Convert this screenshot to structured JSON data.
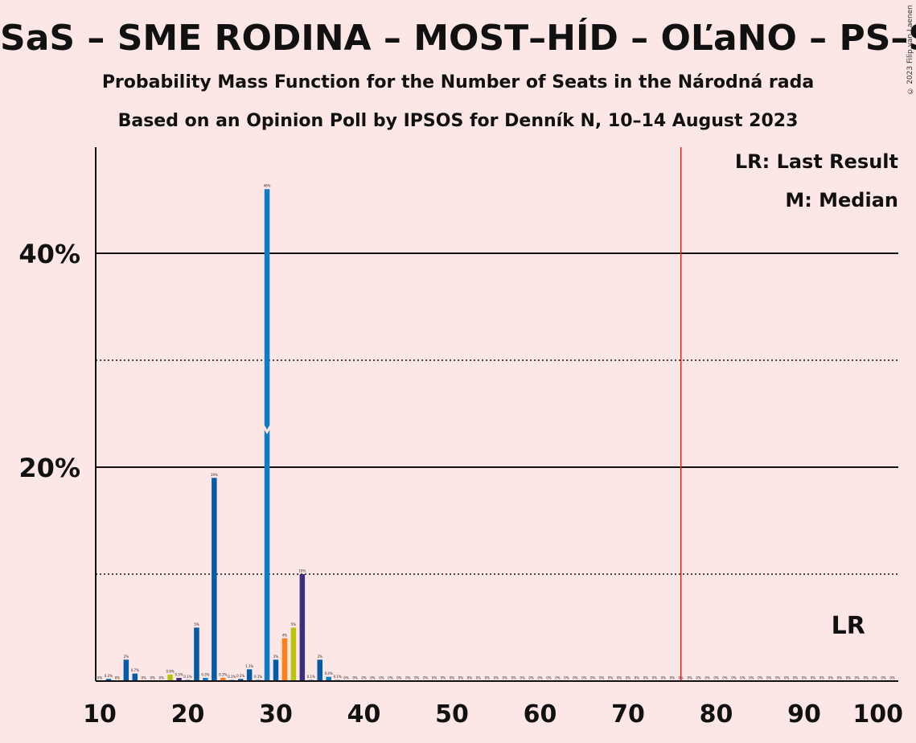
{
  "header": {
    "title": "SaS – SME RODINA – MOST–HÍD – OĽaNO – PS–SPOLU",
    "subtitle1": "Probability Mass Function for the Number of Seats in the Národná rada",
    "subtitle2": "Based on an Opinion Poll by IPSOS for Denník N, 10–14 August 2023",
    "copyright": "© 2023 Filip van Laenen"
  },
  "legend": {
    "last_result": "LR: Last Result",
    "median": "M: Median",
    "lr_marker": "LR"
  },
  "colors": {
    "background": "#fde6e6",
    "majority_line": "#e02020",
    "palette": [
      "#005ba8",
      "#0c7cc7",
      "#ff7f14",
      "#b8c40a",
      "#3a2f7c",
      "#5a3d8a"
    ]
  },
  "chart_data": {
    "type": "bar",
    "xlabel": "",
    "ylabel": "",
    "xlim": [
      10,
      100
    ],
    "ylim": [
      0,
      50
    ],
    "x_ticks": [
      10,
      20,
      30,
      40,
      50,
      60,
      70,
      80,
      90,
      100
    ],
    "y_ticks": [
      {
        "value": 20,
        "label": "20%"
      },
      {
        "value": 40,
        "label": "40%"
      }
    ],
    "y_gridlines_solid": [
      20,
      40
    ],
    "y_gridlines_dotted": [
      10,
      30
    ],
    "majority_line_x": 76,
    "median_x": 29,
    "last_result_x": 95,
    "bars": [
      {
        "x": 10,
        "value": 0,
        "label": "0%",
        "color": 0
      },
      {
        "x": 11,
        "value": 0.2,
        "label": "0.2%",
        "color": 0
      },
      {
        "x": 12,
        "value": 0,
        "label": "0%",
        "color": 0
      },
      {
        "x": 13,
        "value": 2,
        "label": "2%",
        "color": 0
      },
      {
        "x": 14,
        "value": 0.7,
        "label": "0.7%",
        "color": 0
      },
      {
        "x": 15,
        "value": 0,
        "label": "0%",
        "color": 0
      },
      {
        "x": 16,
        "value": 0,
        "label": "0%",
        "color": 0
      },
      {
        "x": 17,
        "value": 0,
        "label": "0%",
        "color": 0
      },
      {
        "x": 18,
        "value": 0.6,
        "label": "0.6%",
        "color": 3
      },
      {
        "x": 19,
        "value": 0.3,
        "label": "0.3%",
        "color": 4
      },
      {
        "x": 20,
        "value": 0.1,
        "label": "0.1%",
        "color": 0
      },
      {
        "x": 21,
        "value": 5,
        "label": "5%",
        "color": 0
      },
      {
        "x": 22,
        "value": 0.3,
        "label": "0.3%",
        "color": 1
      },
      {
        "x": 23,
        "value": 19,
        "label": "19%",
        "color": 0
      },
      {
        "x": 24,
        "value": 0.3,
        "label": "0.3%",
        "color": 2
      },
      {
        "x": 25,
        "value": 0.1,
        "label": "0.1%",
        "color": 0
      },
      {
        "x": 26,
        "value": 0.2,
        "label": "0.2%",
        "color": 0
      },
      {
        "x": 27,
        "value": 1.1,
        "label": "1.1%",
        "color": 0
      },
      {
        "x": 28,
        "value": 0.1,
        "label": "0.1%",
        "color": 0
      },
      {
        "x": 29,
        "value": 46,
        "label": "46%",
        "color": 1
      },
      {
        "x": 30,
        "value": 2,
        "label": "2%",
        "color": 0
      },
      {
        "x": 31,
        "value": 4,
        "label": "4%",
        "color": 2
      },
      {
        "x": 32,
        "value": 5,
        "label": "5%",
        "color": 3
      },
      {
        "x": 33,
        "value": 10,
        "label": "10%",
        "color": 4
      },
      {
        "x": 34,
        "value": 0.1,
        "label": "0.1%",
        "color": 0
      },
      {
        "x": 35,
        "value": 2,
        "label": "2%",
        "color": 0
      },
      {
        "x": 36,
        "value": 0.4,
        "label": "0.4%",
        "color": 1
      },
      {
        "x": 37,
        "value": 0.1,
        "label": "0.1%",
        "color": 0
      },
      {
        "x": 38,
        "value": 0,
        "label": "0%",
        "color": 0
      },
      {
        "x": 39,
        "value": 0,
        "label": "0%",
        "color": 0
      },
      {
        "x": 40,
        "value": 0,
        "label": "0%",
        "color": 0
      },
      {
        "x": 41,
        "value": 0,
        "label": "0%",
        "color": 0
      },
      {
        "x": 42,
        "value": 0,
        "label": "0%",
        "color": 0
      },
      {
        "x": 43,
        "value": 0,
        "label": "0%",
        "color": 0
      },
      {
        "x": 44,
        "value": 0,
        "label": "0%",
        "color": 0
      },
      {
        "x": 45,
        "value": 0,
        "label": "0%",
        "color": 0
      },
      {
        "x": 46,
        "value": 0,
        "label": "0%",
        "color": 0
      },
      {
        "x": 47,
        "value": 0,
        "label": "0%",
        "color": 0
      },
      {
        "x": 48,
        "value": 0,
        "label": "0%",
        "color": 0
      },
      {
        "x": 49,
        "value": 0,
        "label": "0%",
        "color": 0
      },
      {
        "x": 50,
        "value": 0,
        "label": "0%",
        "color": 0
      },
      {
        "x": 51,
        "value": 0,
        "label": "0%",
        "color": 0
      },
      {
        "x": 52,
        "value": 0,
        "label": "0%",
        "color": 0
      },
      {
        "x": 53,
        "value": 0,
        "label": "0%",
        "color": 0
      },
      {
        "x": 54,
        "value": 0,
        "label": "0%",
        "color": 0
      },
      {
        "x": 55,
        "value": 0,
        "label": "0%",
        "color": 0
      },
      {
        "x": 56,
        "value": 0,
        "label": "0%",
        "color": 0
      },
      {
        "x": 57,
        "value": 0,
        "label": "0%",
        "color": 0
      },
      {
        "x": 58,
        "value": 0,
        "label": "0%",
        "color": 0
      },
      {
        "x": 59,
        "value": 0,
        "label": "0%",
        "color": 0
      },
      {
        "x": 60,
        "value": 0,
        "label": "0%",
        "color": 0
      },
      {
        "x": 61,
        "value": 0,
        "label": "0%",
        "color": 0
      },
      {
        "x": 62,
        "value": 0,
        "label": "0%",
        "color": 0
      },
      {
        "x": 63,
        "value": 0,
        "label": "0%",
        "color": 0
      },
      {
        "x": 64,
        "value": 0,
        "label": "0%",
        "color": 0
      },
      {
        "x": 65,
        "value": 0,
        "label": "0%",
        "color": 0
      },
      {
        "x": 66,
        "value": 0,
        "label": "0%",
        "color": 0
      },
      {
        "x": 67,
        "value": 0,
        "label": "0%",
        "color": 0
      },
      {
        "x": 68,
        "value": 0,
        "label": "0%",
        "color": 0
      },
      {
        "x": 69,
        "value": 0,
        "label": "0%",
        "color": 0
      },
      {
        "x": 70,
        "value": 0,
        "label": "0%",
        "color": 0
      },
      {
        "x": 71,
        "value": 0,
        "label": "0%",
        "color": 0
      },
      {
        "x": 72,
        "value": 0,
        "label": "0%",
        "color": 0
      },
      {
        "x": 73,
        "value": 0,
        "label": "0%",
        "color": 0
      },
      {
        "x": 74,
        "value": 0,
        "label": "0%",
        "color": 0
      },
      {
        "x": 75,
        "value": 0,
        "label": "0%",
        "color": 0
      },
      {
        "x": 76,
        "value": 0,
        "label": "0%",
        "color": 0
      },
      {
        "x": 77,
        "value": 0,
        "label": "0%",
        "color": 0
      },
      {
        "x": 78,
        "value": 0,
        "label": "0%",
        "color": 0
      },
      {
        "x": 79,
        "value": 0,
        "label": "0%",
        "color": 0
      },
      {
        "x": 80,
        "value": 0,
        "label": "0%",
        "color": 0
      },
      {
        "x": 81,
        "value": 0,
        "label": "0%",
        "color": 0
      },
      {
        "x": 82,
        "value": 0,
        "label": "0%",
        "color": 0
      },
      {
        "x": 83,
        "value": 0,
        "label": "0%",
        "color": 0
      },
      {
        "x": 84,
        "value": 0,
        "label": "0%",
        "color": 0
      },
      {
        "x": 85,
        "value": 0,
        "label": "0%",
        "color": 0
      },
      {
        "x": 86,
        "value": 0,
        "label": "0%",
        "color": 0
      },
      {
        "x": 87,
        "value": 0,
        "label": "0%",
        "color": 0
      },
      {
        "x": 88,
        "value": 0,
        "label": "0%",
        "color": 0
      },
      {
        "x": 89,
        "value": 0,
        "label": "0%",
        "color": 0
      },
      {
        "x": 90,
        "value": 0,
        "label": "0%",
        "color": 0
      },
      {
        "x": 91,
        "value": 0,
        "label": "0%",
        "color": 0
      },
      {
        "x": 92,
        "value": 0,
        "label": "0%",
        "color": 0
      },
      {
        "x": 93,
        "value": 0,
        "label": "0%",
        "color": 0
      },
      {
        "x": 94,
        "value": 0,
        "label": "0%",
        "color": 0
      },
      {
        "x": 95,
        "value": 0,
        "label": "0%",
        "color": 0
      },
      {
        "x": 96,
        "value": 0,
        "label": "0%",
        "color": 0
      },
      {
        "x": 97,
        "value": 0,
        "label": "0%",
        "color": 0
      },
      {
        "x": 98,
        "value": 0,
        "label": "0%",
        "color": 0
      },
      {
        "x": 99,
        "value": 0,
        "label": "0%",
        "color": 0
      },
      {
        "x": 100,
        "value": 0,
        "label": "0%",
        "color": 0
      }
    ]
  }
}
